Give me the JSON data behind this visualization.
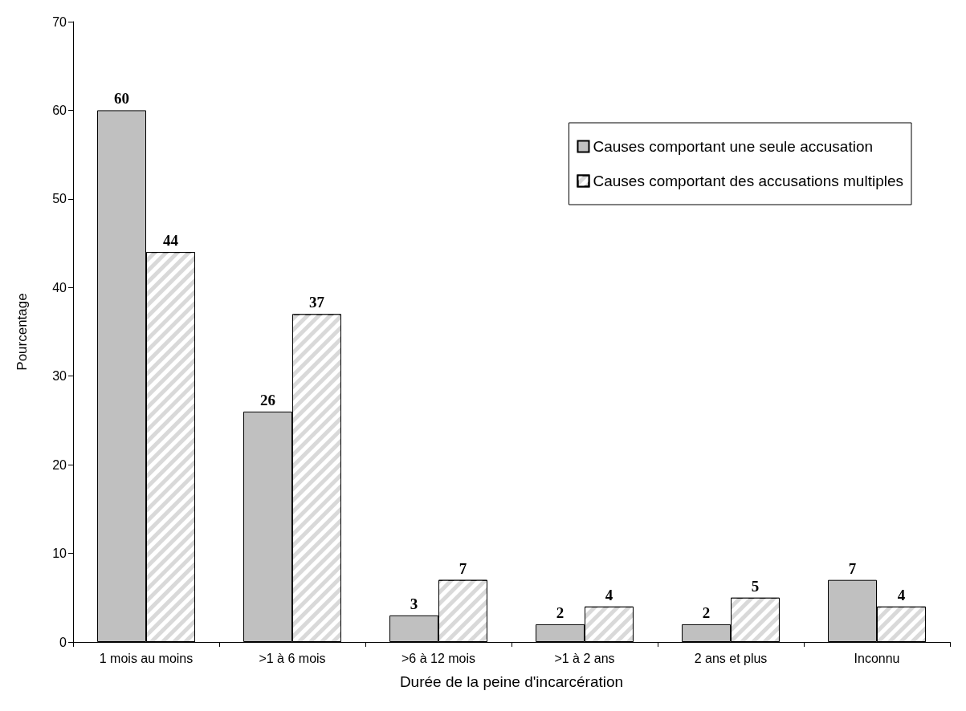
{
  "chart_data": {
    "type": "bar",
    "xlabel": "Durée de la peine d'incarcération",
    "ylabel": "Pourcentage",
    "categories": [
      "1 mois au moins",
      ">1 à 6 mois",
      ">6 à 12 mois",
      ">1 à 2 ans",
      "2 ans et plus",
      "Inconnu"
    ],
    "series": [
      {
        "name": "Causes comportant une seule accusation",
        "color": "#c0c0c0",
        "values": [
          60,
          26,
          3,
          2,
          2,
          7
        ]
      },
      {
        "name": "Causes comportant des accusations multiples",
        "color": "#d9d9d9",
        "values": [
          44,
          37,
          7,
          4,
          5,
          4
        ]
      }
    ],
    "ylim": [
      0,
      70
    ],
    "yticks": [
      0,
      10,
      20,
      30,
      40,
      50,
      60,
      70
    ],
    "grid": false,
    "legend": "top right",
    "data_labels": true
  }
}
